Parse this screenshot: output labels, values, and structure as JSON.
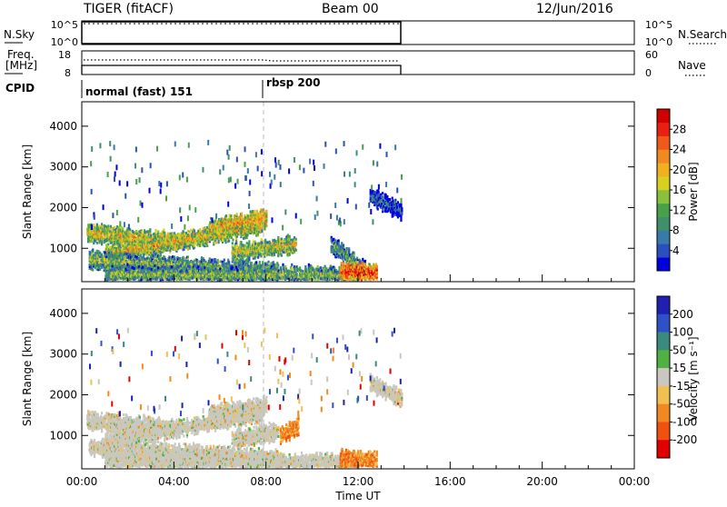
{
  "header": {
    "radar": "TIGER (fitACF)",
    "beam": "Beam 00",
    "date": "12/Jun/2016"
  },
  "nsky_panel": {
    "left_label": "N.Sky",
    "left_ticks": [
      "10^5",
      "10^0"
    ],
    "right_ticks": [
      "10^5",
      "10^0"
    ],
    "right_label": "N.Search"
  },
  "freq_panel": {
    "left_label_line1": "Freq.",
    "left_label_line2": "[MHz]",
    "left_ticks": [
      "18",
      "8"
    ],
    "right_ticks": [
      "60",
      "0"
    ],
    "right_label": "Nave"
  },
  "cpid_panel": {
    "label": "CPID",
    "modes": [
      {
        "name": "normal (fast) 151",
        "start_hour": 0
      },
      {
        "name": "rbsp 200",
        "start_hour": 8
      }
    ]
  },
  "chart_data": [
    {
      "type": "heatmap",
      "panel": "power",
      "ylabel": "Slant Range [km]",
      "ylim": [
        180,
        4600
      ],
      "yticks": [
        "1000",
        "2000",
        "3000",
        "4000"
      ],
      "xlim": [
        0,
        24
      ],
      "colorbar": {
        "label": "Power [dB]",
        "range": [
          0,
          32
        ],
        "ticks": [
          "4",
          "8",
          "12",
          "16",
          "20",
          "24",
          "28"
        ],
        "colors": [
          "#0000e0",
          "#2a4fbf",
          "#3a7aa8",
          "#3f8f6a",
          "#49a04a",
          "#88c23c",
          "#d8d020",
          "#f0b020",
          "#f08a20",
          "#f05a18",
          "#e82010",
          "#d00000"
        ]
      },
      "echo_bands": [
        {
          "start_hour": 0.2,
          "end_hour": 4.0,
          "range_from_km": 1380,
          "range_to_km": 1180,
          "level": 0.6
        },
        {
          "start_hour": 1.0,
          "end_hour": 7.8,
          "range_from_km": 850,
          "range_to_km": 1550,
          "level": 0.62
        },
        {
          "start_hour": 5.5,
          "end_hour": 8.0,
          "range_from_km": 1500,
          "range_to_km": 1750,
          "level": 0.7
        },
        {
          "start_hour": 0.3,
          "end_hour": 8.5,
          "range_from_km": 720,
          "range_to_km": 430,
          "level": 0.45
        },
        {
          "start_hour": 6.5,
          "end_hour": 9.3,
          "range_from_km": 900,
          "range_to_km": 1100,
          "level": 0.55
        },
        {
          "start_hour": 1.0,
          "end_hour": 12.0,
          "range_from_km": 350,
          "range_to_km": 350,
          "level": 0.45
        },
        {
          "start_hour": 10.8,
          "end_hour": 12.3,
          "range_from_km": 1100,
          "range_to_km": 450,
          "level": 0.4
        },
        {
          "start_hour": 11.2,
          "end_hour": 12.8,
          "range_from_km": 420,
          "range_to_km": 400,
          "level": 0.85
        },
        {
          "start_hour": 12.5,
          "end_hour": 13.9,
          "range_from_km": 2300,
          "range_to_km": 1900,
          "level": 0.2
        }
      ]
    },
    {
      "type": "heatmap",
      "panel": "velocity",
      "ylabel": "Slant Range [km]",
      "ylim": [
        180,
        4600
      ],
      "yticks": [
        "1000",
        "2000",
        "3000",
        "4000"
      ],
      "xlim": [
        0,
        24
      ],
      "xticks": [
        "00:00",
        "04:00",
        "08:00",
        "12:00",
        "16:00",
        "20:00",
        "00:00"
      ],
      "xlabel": "Time UT",
      "colorbar": {
        "label": "Velocity [m s⁻¹]",
        "ticks": [
          "200",
          "100",
          "50",
          "15",
          "-15",
          "-50",
          "-100",
          "-200"
        ],
        "colors": [
          "#2020b0",
          "#3050c8",
          "#3a8a80",
          "#50b040",
          "#c8c8c0",
          "#f0c050",
          "#f08a20",
          "#f05010",
          "#e00000"
        ]
      },
      "echo_bands": [
        {
          "start_hour": 0.2,
          "end_hour": 4.0,
          "range_from_km": 1380,
          "range_to_km": 1180,
          "class": "low"
        },
        {
          "start_hour": 1.0,
          "end_hour": 7.8,
          "range_from_km": 850,
          "range_to_km": 1550,
          "class": "low"
        },
        {
          "start_hour": 5.5,
          "end_hour": 8.0,
          "range_from_km": 1500,
          "range_to_km": 1750,
          "class": "low"
        },
        {
          "start_hour": 0.3,
          "end_hour": 8.5,
          "range_from_km": 720,
          "range_to_km": 430,
          "class": "low"
        },
        {
          "start_hour": 6.5,
          "end_hour": 8.5,
          "range_from_km": 900,
          "range_to_km": 1100,
          "class": "low"
        },
        {
          "start_hour": 8.6,
          "end_hour": 9.4,
          "range_from_km": 1000,
          "range_to_km": 1250,
          "class": "negative"
        },
        {
          "start_hour": 1.0,
          "end_hour": 12.0,
          "range_from_km": 350,
          "range_to_km": 350,
          "class": "low"
        },
        {
          "start_hour": 11.2,
          "end_hour": 12.8,
          "range_from_km": 420,
          "range_to_km": 400,
          "class": "negative"
        },
        {
          "start_hour": 12.5,
          "end_hour": 13.9,
          "range_from_km": 2300,
          "range_to_km": 1900,
          "class": "low"
        }
      ]
    }
  ]
}
